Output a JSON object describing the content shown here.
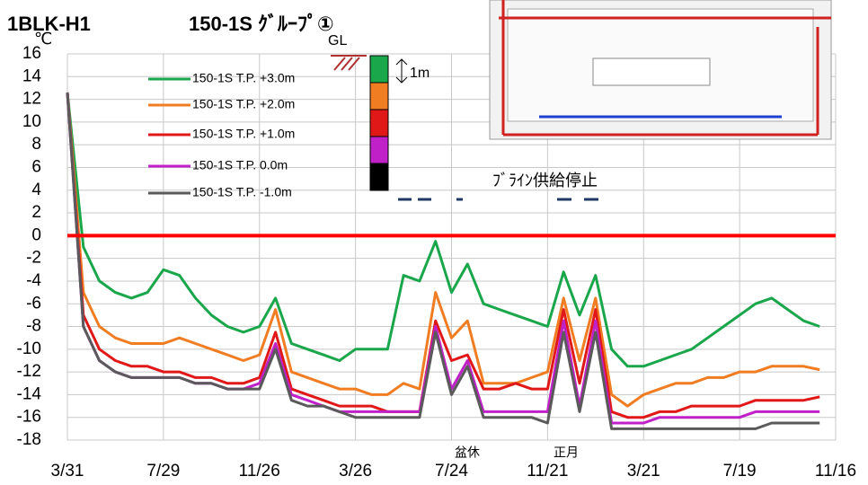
{
  "chart_data": {
    "type": "line",
    "title": "1BLK-H1",
    "subtitle": "150-1S ｸﾞﾙｰﾌﾟ①",
    "y_unit": "℃",
    "annotations": [
      "GL",
      "1m",
      "ﾌﾞﾗｲﾝ供給停止",
      "盆休",
      "正月"
    ],
    "categories": [
      "3/31",
      null,
      null,
      null,
      null,
      null,
      "7/29",
      null,
      null,
      null,
      null,
      null,
      "11/26",
      null,
      null,
      null,
      null,
      null,
      "3/26",
      null,
      null,
      null,
      null,
      null,
      "7/24",
      null,
      null,
      null,
      null,
      null,
      "11/21",
      null,
      null,
      null,
      null,
      null,
      "3/21",
      null,
      null,
      null,
      null,
      null,
      "7/19",
      null,
      null,
      null,
      null,
      null,
      "11/16"
    ],
    "ylim": [
      -18,
      16
    ],
    "yticks": [
      -18,
      -16,
      -14,
      -12,
      -10,
      -8,
      -6,
      -4,
      -2,
      0,
      2,
      4,
      6,
      8,
      10,
      12,
      14,
      16
    ],
    "grid": true,
    "zero_line_color": "#ff0000",
    "legend": "upper-left",
    "series": [
      {
        "name": "150-1S T.P. +3.0m",
        "color": "#1aa64a",
        "values": [
          12.6,
          -1,
          -4,
          -5,
          -5.5,
          -5,
          -3,
          -3.5,
          -5.5,
          -7,
          -8,
          -8.5,
          -8,
          -5.5,
          -9.5,
          -10,
          -10.5,
          -11,
          -10,
          -10,
          -10,
          -3.5,
          -4,
          -0.5,
          -5,
          -2.5,
          -6,
          -6.5,
          -7,
          -7.5,
          -8,
          -3.2,
          -7,
          -3.5,
          -10,
          -11.5,
          -11.5,
          -11,
          -10.5,
          -10,
          -9,
          -8,
          -7,
          -6,
          -5.5,
          -6.5,
          -7.5,
          -8,
          null
        ]
      },
      {
        "name": "150-1S T.P. +2.0m",
        "color": "#f07d22",
        "values": [
          12.6,
          -5,
          -8,
          -9,
          -9.5,
          -9.5,
          -9.5,
          -9,
          -9.5,
          -10,
          -10.5,
          -11,
          -10.5,
          -6.5,
          -12,
          -12.5,
          -13,
          -13.5,
          -13.5,
          -14,
          -14,
          -13,
          -13.5,
          -5,
          -9,
          -7.5,
          -13,
          -13,
          -13,
          -12.5,
          -12,
          -5.5,
          -11,
          -5.5,
          -14,
          -15,
          -14,
          -13.5,
          -13,
          -13,
          -12.5,
          -12.5,
          -12,
          -12,
          -11.5,
          -11.5,
          -11.5,
          -11.8,
          null
        ]
      },
      {
        "name": "150-1S T.P. +1.0m",
        "color": "#e01818",
        "values": [
          12.6,
          -7,
          -10,
          -11,
          -11.5,
          -11.5,
          -12,
          -12,
          -12.5,
          -12.5,
          -13,
          -13,
          -12.5,
          -8.5,
          -13.5,
          -14,
          -14.5,
          -15,
          -15,
          -15,
          -15.5,
          -15.5,
          -15.5,
          -7.5,
          -11,
          -10.5,
          -13.5,
          -13.5,
          -13,
          -13.5,
          -13.5,
          -6.5,
          -13,
          -6.5,
          -15.5,
          -16,
          -16,
          -15.5,
          -15.5,
          -15,
          -15,
          -15,
          -15,
          -14.5,
          -14.5,
          -14.5,
          -14.5,
          -14.2,
          null
        ]
      },
      {
        "name": "150-1S T.P.  0.0m",
        "color": "#c020c8",
        "values": [
          12.6,
          -8,
          -11,
          -12,
          -12.5,
          -12.5,
          -12.5,
          -12.5,
          -13,
          -13,
          -13.5,
          -13.5,
          -13,
          -9.5,
          -14,
          -14.5,
          -15,
          -15.5,
          -15.5,
          -15.5,
          -15.5,
          -15.5,
          -15.5,
          -8,
          -13.5,
          -11,
          -15.5,
          -15.5,
          -15.5,
          -15.5,
          -15.5,
          -7.5,
          -15,
          -7.5,
          -16.5,
          -16.5,
          -16.5,
          -16,
          -16,
          -16,
          -16,
          -16,
          -16,
          -15.5,
          -15.5,
          -15.5,
          -15.5,
          -15.5,
          null
        ]
      },
      {
        "name": "150-1S T.P. -1.0m",
        "color": "#5a5a5a",
        "values": [
          12.6,
          -8,
          -11,
          -12,
          -12.5,
          -12.5,
          -12.5,
          -12.5,
          -13,
          -13,
          -13.5,
          -13.5,
          -13.5,
          -10,
          -14.5,
          -15,
          -15,
          -15.5,
          -16,
          -16,
          -16,
          -16,
          -16,
          -8.5,
          -14,
          -11.5,
          -16,
          -16,
          -16,
          -16,
          -16.5,
          -8.5,
          -15.5,
          -8.5,
          -17,
          -17,
          -17,
          -17,
          -17,
          -17,
          -17,
          -17,
          -17,
          -17,
          -16.5,
          -16.5,
          -16.5,
          -16.5,
          null
        ]
      }
    ]
  }
}
